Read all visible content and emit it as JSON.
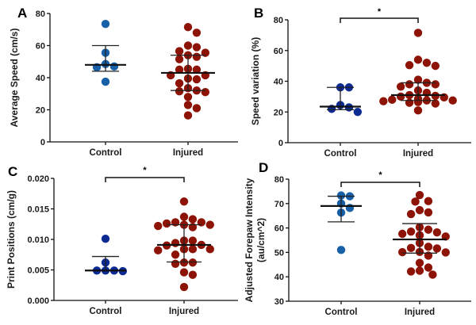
{
  "colors": {
    "control_light": "#175fa6",
    "control_dark": "#0c2a91",
    "injured": "#8d1306",
    "axis": "#111111"
  },
  "chart_data": [
    {
      "type": "scatter",
      "panel": "A",
      "title": "",
      "xlabel": "",
      "ylabel": "Average Speed (cm/s)",
      "ylim": [
        0,
        80
      ],
      "yticks": [
        0,
        20,
        40,
        60,
        80
      ],
      "ytick_labels": [
        "0",
        "20",
        "40",
        "60",
        "80"
      ],
      "categories": [
        "Control",
        "Injured"
      ],
      "control_color_key": "control_light",
      "significance": null,
      "series": [
        {
          "name": "Control",
          "values": [
            73.5,
            55.5,
            48.5,
            46.5,
            47,
            37.5
          ],
          "median": 48,
          "iqr": [
            44,
            60
          ]
        },
        {
          "name": "Injured",
          "values": [
            71.5,
            68,
            60,
            56.5,
            59,
            53,
            55.5,
            51.5,
            54,
            41.5,
            45,
            45,
            45.5,
            41.5,
            39,
            39.5,
            36.5,
            33.5,
            31,
            31.5,
            32,
            28,
            21,
            23,
            16.5
          ],
          "median": 43,
          "iqr": [
            32,
            54
          ]
        }
      ]
    },
    {
      "type": "scatter",
      "panel": "B",
      "title": "",
      "xlabel": "",
      "ylabel": "Speed variation (%)",
      "ylim": [
        0,
        80
      ],
      "yticks": [
        0,
        20,
        40,
        60,
        80
      ],
      "ytick_labels": [
        "0",
        "20",
        "40",
        "60",
        "80"
      ],
      "categories": [
        "Control",
        "Injured"
      ],
      "control_color_key": "control_dark",
      "significance": "*",
      "series": [
        {
          "name": "Control",
          "values": [
            36,
            36,
            24.5,
            23,
            22,
            20
          ],
          "median": 23.5,
          "iqr": [
            21.5,
            36
          ]
        },
        {
          "name": "Injured",
          "values": [
            71.5,
            54,
            50,
            50.5,
            52,
            41,
            39,
            38,
            38,
            36.5,
            34,
            32.5,
            31,
            30.5,
            30,
            29.5,
            28.5,
            28,
            27.5,
            27.5,
            27,
            26.5,
            26,
            25.5,
            21
          ],
          "median": 31,
          "iqr": [
            27.5,
            39
          ]
        }
      ]
    },
    {
      "type": "scatter",
      "panel": "C",
      "title": "",
      "xlabel": "",
      "ylabel": "Print Positions (cm/g)",
      "ylim": [
        0,
        0.02
      ],
      "yticks": [
        0,
        0.005,
        0.01,
        0.015,
        0.02
      ],
      "ytick_labels": [
        "0.000",
        "0.005",
        "0.010",
        "0.015",
        "0.020"
      ],
      "categories": [
        "Control",
        "Injured"
      ],
      "control_color_key": "control_dark",
      "significance": "*",
      "series": [
        {
          "name": "Control",
          "values": [
            0.0101,
            0.0062,
            0.0049,
            0.0049,
            0.0048,
            0.0049
          ],
          "median": 0.0049,
          "iqr": [
            0.0049,
            0.0072
          ]
        },
        {
          "name": "Injured",
          "values": [
            0.0162,
            0.0137,
            0.0128,
            0.0124,
            0.0128,
            0.0133,
            0.0126,
            0.0122,
            0.012,
            0.0124,
            0.0098,
            0.0094,
            0.0091,
            0.009,
            0.0098,
            0.0084,
            0.0084,
            0.0084,
            0.0082,
            0.0075,
            0.0062,
            0.0062,
            0.006,
            0.0046,
            0.0042,
            0.0022
          ],
          "median": 0.0091,
          "iqr": [
            0.0063,
            0.0124
          ]
        }
      ]
    },
    {
      "type": "scatter",
      "panel": "D",
      "title": "",
      "xlabel": "",
      "ylabel": "Adjusted Forepaw Intensity (au/cm^2)",
      "ylabel_lines": [
        "Adjusted Forepaw Intensity",
        "(au/cm^2)"
      ],
      "ylim": [
        30,
        80
      ],
      "yticks": [
        30,
        40,
        50,
        60,
        70,
        80
      ],
      "ytick_labels": [
        "30",
        "40",
        "50",
        "60",
        "70",
        "80"
      ],
      "categories": [
        "Control",
        "Injured"
      ],
      "control_color_key": "control_light",
      "significance": "*",
      "series": [
        {
          "name": "Control",
          "values": [
            73,
            73.3,
            70,
            68.2,
            66.3,
            51
          ],
          "median": 69,
          "iqr": [
            62.5,
            73
          ]
        },
        {
          "name": "Injured",
          "values": [
            73.5,
            70.8,
            71,
            67.3,
            66.4,
            65.7,
            60.3,
            59.3,
            58.2,
            58.5,
            57.6,
            57,
            56.5,
            53.8,
            52.3,
            51.6,
            51.8,
            50.2,
            50.1,
            50,
            48.7,
            45.7,
            43.8,
            42.5,
            42.2,
            40.9
          ],
          "median": 55.3,
          "iqr": [
            49.7,
            61.8
          ]
        }
      ]
    }
  ]
}
